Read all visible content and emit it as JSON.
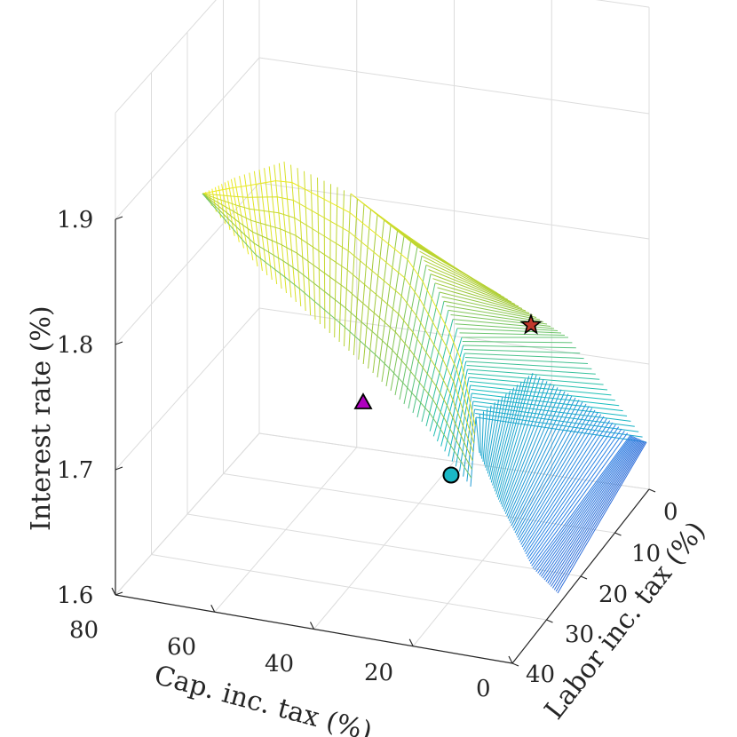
{
  "chart_data": {
    "type": "surface-mesh-3d",
    "x_axis": {
      "label": "Cap. inc. tax (%)",
      "ticks": [
        "80",
        "60",
        "40",
        "20",
        "0"
      ],
      "range": [
        0,
        80
      ]
    },
    "y_axis": {
      "label": "Labor inc. tax (%)",
      "ticks": [
        "0",
        "10",
        "20",
        "30",
        "40"
      ],
      "range": [
        0,
        40
      ]
    },
    "z_axis": {
      "label": "Interest rate (%)",
      "ticks": [
        "1.6",
        "1.7",
        "1.8",
        "1.9"
      ],
      "range": [
        1.6,
        1.9
      ]
    },
    "colormap": "parula",
    "surface_ridge": [
      {
        "cap_tax": 80,
        "labor_tax": 0,
        "interest_rate": 1.9
      },
      {
        "cap_tax": 55,
        "labor_tax": 0,
        "interest_rate": 1.87
      },
      {
        "cap_tax": 35,
        "labor_tax": 0,
        "interest_rate": 1.79
      },
      {
        "cap_tax": 20,
        "labor_tax": 0,
        "interest_rate": 1.72
      },
      {
        "cap_tax": 10,
        "labor_tax": 0,
        "interest_rate": 1.69
      },
      {
        "cap_tax": 0,
        "labor_tax": 0,
        "interest_rate": 1.7
      }
    ],
    "markers": [
      {
        "name": "star",
        "color": "#c0392b",
        "interest_rate": 1.79
      },
      {
        "name": "triangle",
        "color": "#b000c0",
        "interest_rate": 1.76
      },
      {
        "name": "circle",
        "color": "#1ab8c6",
        "interest_rate": 1.73
      }
    ]
  }
}
